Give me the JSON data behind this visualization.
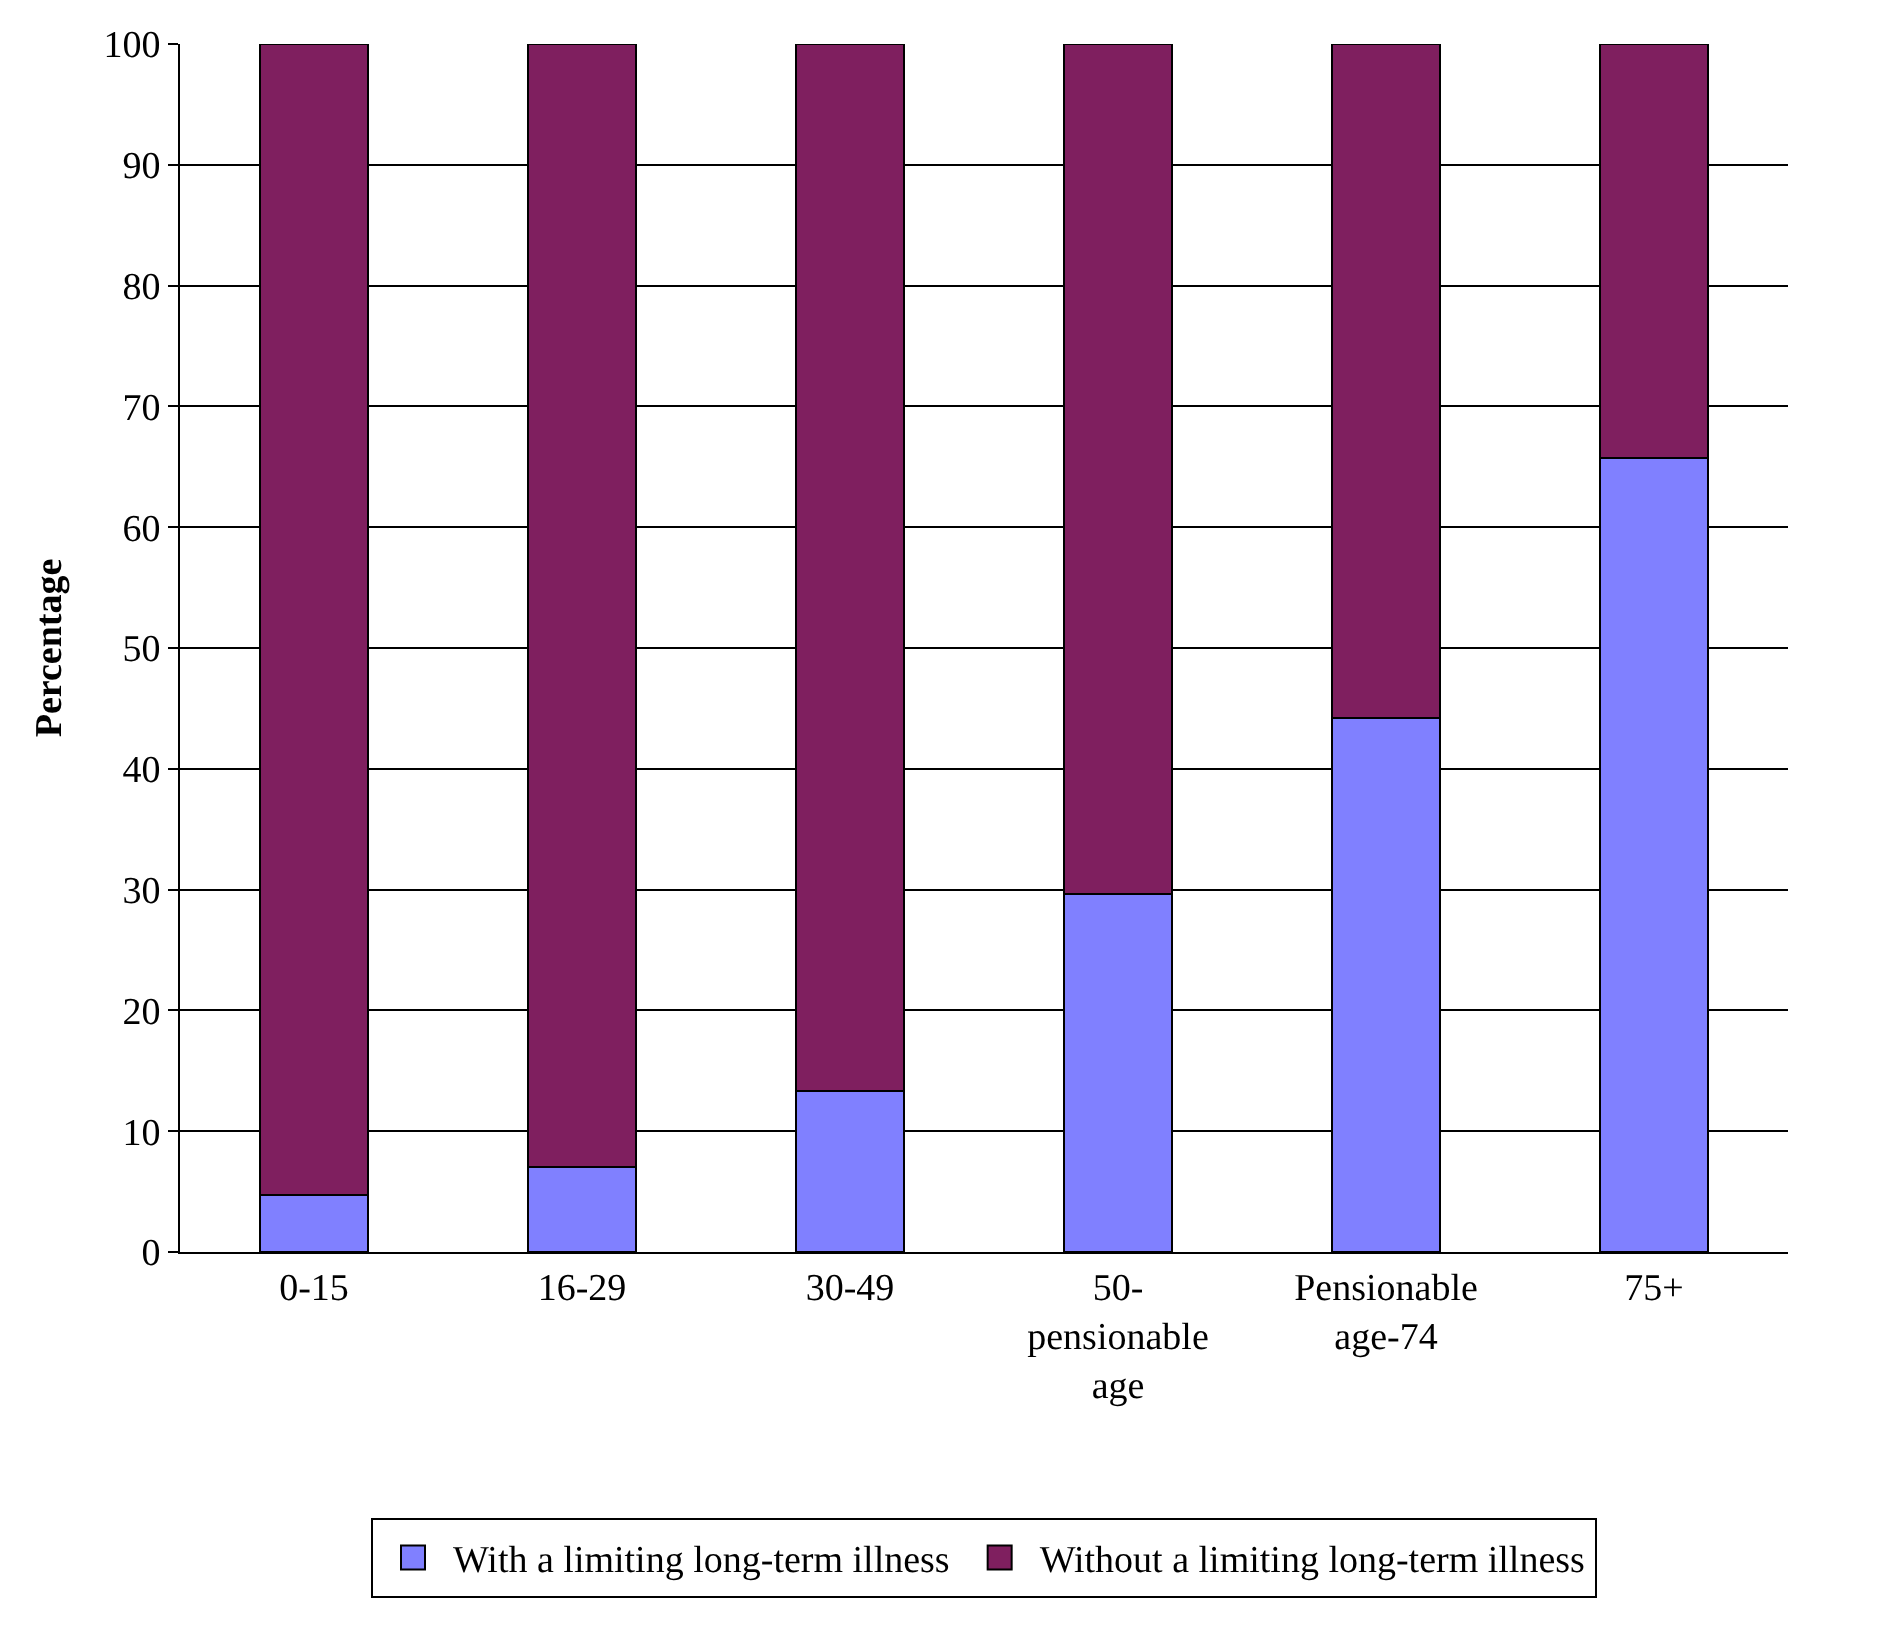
{
  "chart_data": {
    "type": "bar",
    "stacked": true,
    "ylabel": "Percentage",
    "categories": [
      "0-15",
      "16-29",
      "30-49",
      "50-pensionable age",
      "Pensionable age-74",
      "75+"
    ],
    "series": [
      {
        "name": "With a limiting long-term illness",
        "color": "#8080ff",
        "values": [
          4.7,
          7,
          13.3,
          29.6,
          44.2,
          65.7
        ]
      },
      {
        "name": "Without a limiting long-term illness",
        "color": "#7f1f5f",
        "values": [
          95.3,
          93,
          86.7,
          70.4,
          55.8,
          34.3
        ]
      }
    ],
    "ylim": [
      0,
      100
    ],
    "yticks": [
      0,
      10,
      20,
      30,
      40,
      50,
      60,
      70,
      80,
      90,
      100
    ],
    "grid": "y",
    "legend": "bottom"
  }
}
